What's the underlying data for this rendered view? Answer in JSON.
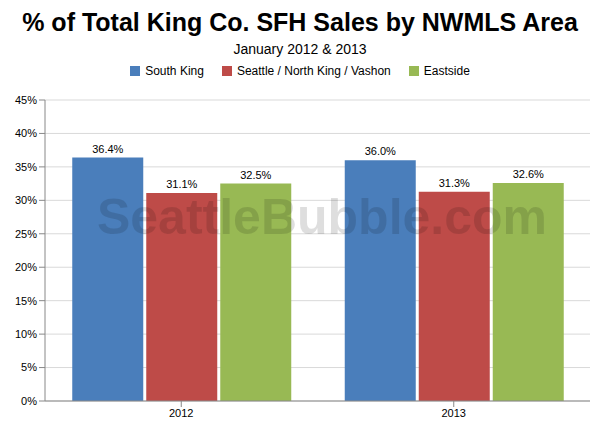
{
  "chart_data": {
    "type": "bar",
    "title": "% of Total King Co. SFH Sales by NWMLS Area",
    "subtitle": "January 2012 & 2013",
    "watermark": "SeattleBubble.com",
    "categories": [
      "2012",
      "2013"
    ],
    "series": [
      {
        "name": "South King",
        "color": "#4a7ebb",
        "values": [
          36.4,
          36.0
        ],
        "value_labels": [
          "36.4%",
          "36.0%"
        ]
      },
      {
        "name": "Seattle / North King / Vashon",
        "color": "#be4b48",
        "values": [
          31.1,
          31.3
        ],
        "value_labels": [
          "31.1%",
          "31.3%"
        ]
      },
      {
        "name": "Eastside",
        "color": "#98b954",
        "values": [
          32.5,
          32.6
        ],
        "value_labels": [
          "32.5%",
          "32.6%"
        ]
      }
    ],
    "ylim": [
      0,
      45
    ],
    "yticks": [
      {
        "value": 0,
        "label": "0%"
      },
      {
        "value": 5,
        "label": "5%"
      },
      {
        "value": 10,
        "label": "10%"
      },
      {
        "value": 15,
        "label": "15%"
      },
      {
        "value": 20,
        "label": "20%"
      },
      {
        "value": 25,
        "label": "25%"
      },
      {
        "value": 30,
        "label": "30%"
      },
      {
        "value": 35,
        "label": "35%"
      },
      {
        "value": 40,
        "label": "40%"
      },
      {
        "value": 45,
        "label": "45%"
      }
    ],
    "grid": true,
    "legend": "top",
    "data_labels": true
  }
}
